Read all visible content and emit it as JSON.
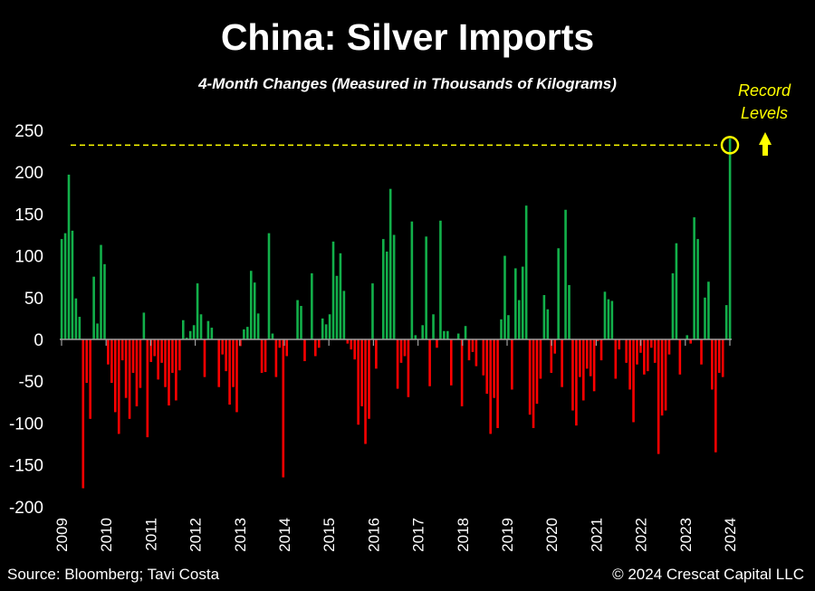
{
  "chart_data": {
    "type": "bar",
    "title": "China: Silver Imports",
    "subtitle": "4-Month Changes (Measured in Thousands of Kilograms)",
    "xlabel": "",
    "ylabel": "",
    "start_month": "2009-01",
    "frequency": "monthly",
    "ylim": [
      -200,
      250
    ],
    "yticks": [
      250,
      200,
      150,
      100,
      50,
      0,
      -50,
      -100,
      -150,
      -200
    ],
    "xticks": [
      "2009",
      "2010",
      "2011",
      "2012",
      "2013",
      "2014",
      "2015",
      "2016",
      "2017",
      "2018",
      "2019",
      "2020",
      "2021",
      "2022",
      "2023",
      "2024"
    ],
    "values": [
      120,
      127,
      197,
      130,
      49,
      27,
      -178,
      -52,
      -95,
      75,
      19,
      113,
      90,
      -30,
      -52,
      -87,
      -113,
      -25,
      -70,
      -95,
      -40,
      -80,
      -58,
      32,
      -117,
      -27,
      -20,
      -48,
      -28,
      -57,
      -79,
      -40,
      -73,
      -37,
      23,
      2,
      10,
      17,
      67,
      30,
      -45,
      22,
      14,
      0,
      -57,
      -18,
      -38,
      -78,
      -57,
      -87,
      -8,
      12,
      15,
      82,
      68,
      31,
      -40,
      -39,
      127,
      7,
      -45,
      -10,
      -165,
      -20,
      0,
      0,
      47,
      40,
      -26,
      0,
      79,
      -20,
      -10,
      25,
      18,
      30,
      117,
      76,
      103,
      58,
      -5,
      -12,
      -24,
      -102,
      -80,
      -125,
      -95,
      67,
      -35,
      0,
      120,
      105,
      180,
      125,
      -59,
      -28,
      -20,
      -69,
      141,
      5,
      0,
      17,
      123,
      -56,
      30,
      -10,
      142,
      10,
      10,
      -55,
      0,
      7,
      -80,
      16,
      -25,
      -15,
      -32,
      0,
      -43,
      -65,
      -113,
      -70,
      -106,
      24,
      100,
      29,
      -60,
      85,
      47,
      87,
      160,
      -90,
      -106,
      -77,
      -47,
      53,
      36,
      -40,
      -17,
      109,
      -57,
      155,
      65,
      -85,
      -103,
      -45,
      -73,
      -35,
      -44,
      -62,
      -2,
      -25,
      57,
      48,
      46,
      -47,
      -12,
      0,
      -28,
      -60,
      -99,
      -30,
      -16,
      -42,
      -38,
      -10,
      -28,
      -137,
      -91,
      -85,
      -18,
      79,
      115,
      -42,
      0,
      5,
      -5,
      146,
      120,
      -30,
      50,
      69,
      -60,
      -135,
      -40,
      -45,
      41,
      240
    ],
    "record_level": 242,
    "annotation": [
      "Record",
      "Levels"
    ],
    "colors": {
      "positive": "#12b04a",
      "negative": "#ff0000",
      "record": "#ffff00",
      "axis": "#a0a0a0"
    },
    "grid": false,
    "legend": "none"
  },
  "footer": {
    "source": "Source: Bloomberg; Tavi Costa",
    "copyright": "© 2024 Crescat Capital LLC"
  }
}
